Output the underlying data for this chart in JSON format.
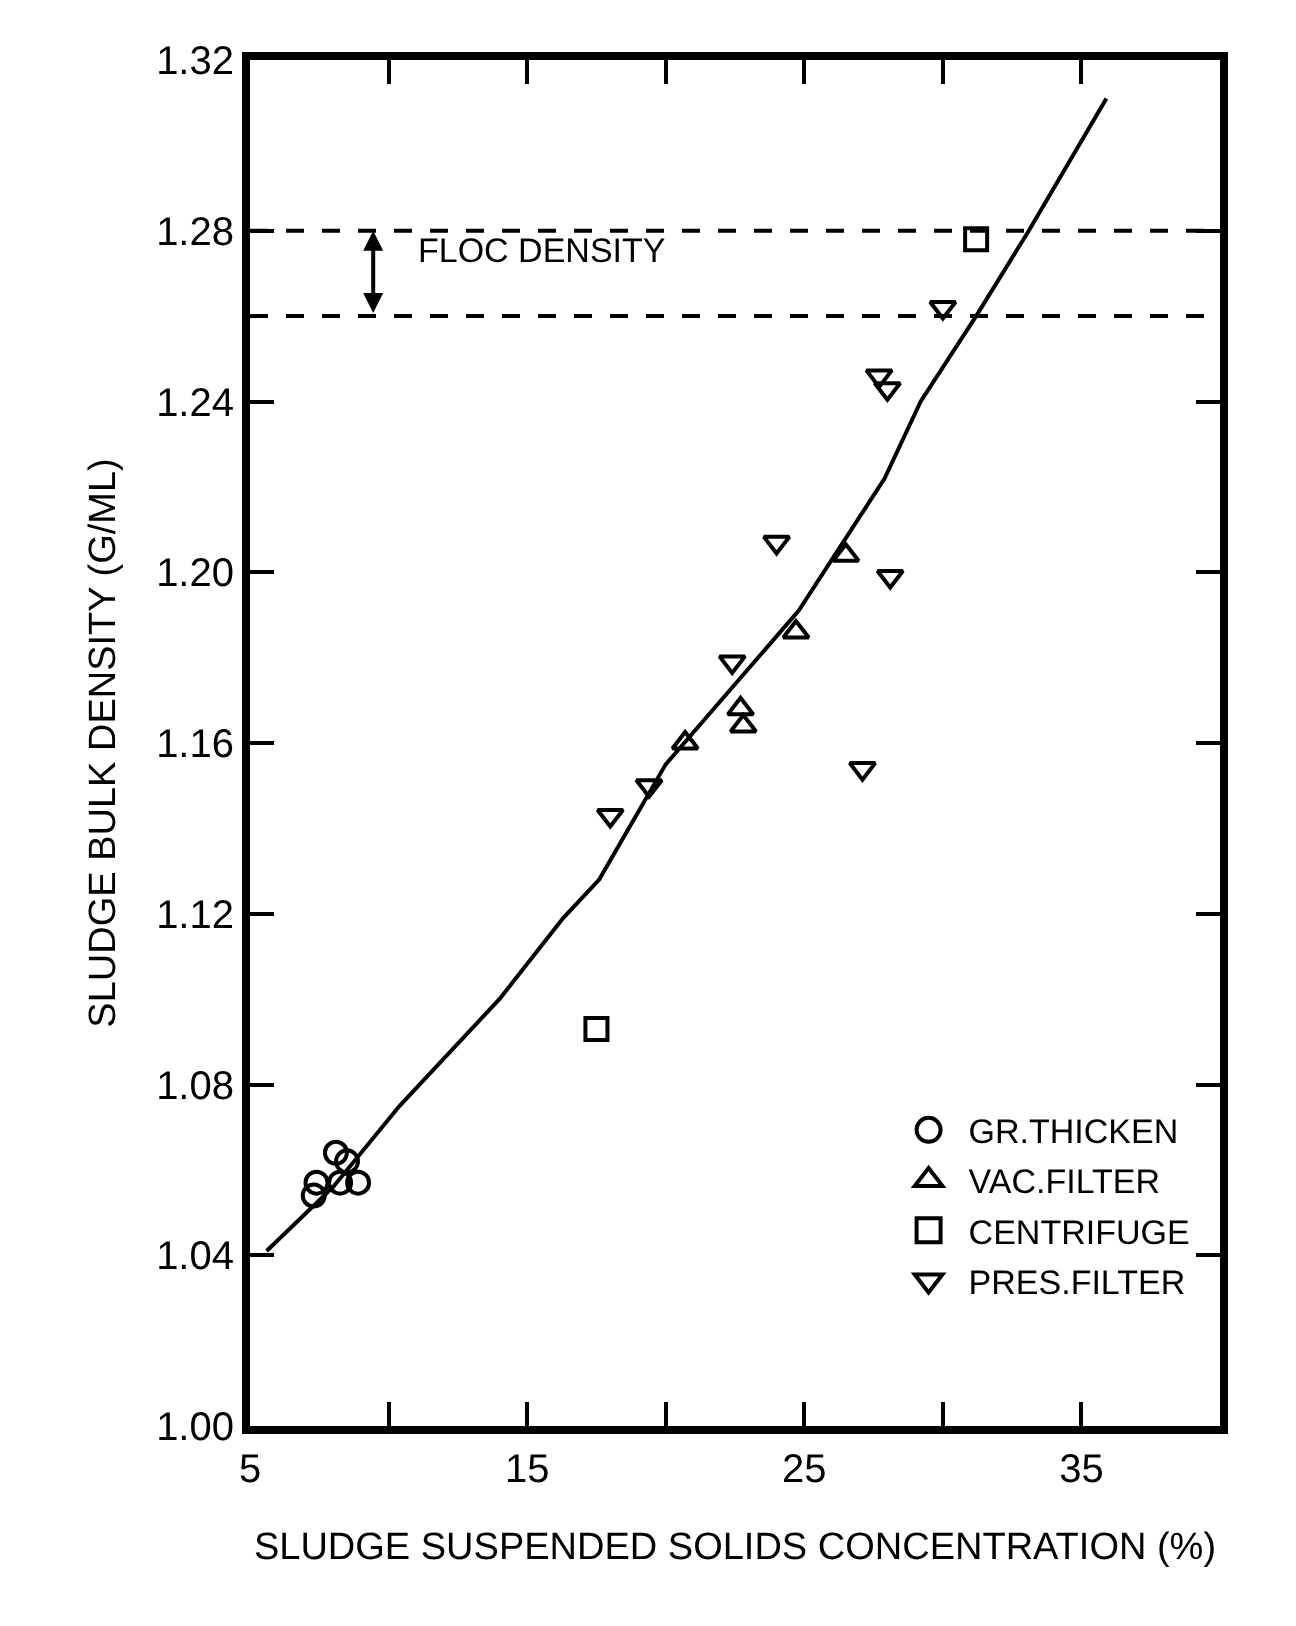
{
  "chart_data": {
    "type": "scatter",
    "xlabel": "SLUDGE SUSPENDED SOLIDS CONCENTRATION (%)",
    "ylabel": "SLUDGE BULK DENSITY (G/ML)",
    "xlim": [
      5,
      40
    ],
    "xticks": [
      5,
      {
        "value": 10,
        "label": null
      },
      15,
      {
        "value": 20,
        "label": null
      },
      25,
      {
        "value": 30,
        "label": null
      },
      35
    ],
    "ylim": [
      1.0,
      1.32
    ],
    "yticks": [
      {
        "value": 1.0,
        "label": "1.00"
      },
      1.04,
      1.08,
      1.12,
      1.16,
      {
        "value": 1.2,
        "label": "1.20"
      },
      1.24,
      1.28,
      1.32
    ],
    "legend": "bottom right",
    "series": [
      {
        "name": "GR.THICKEN",
        "color": "#000000",
        "marker": "circle",
        "x": [
          8.1,
          8.5,
          7.4,
          8.25,
          8.9,
          7.3
        ],
        "values": [
          1.064,
          1.062,
          1.057,
          1.057,
          1.057,
          1.054
        ]
      },
      {
        "name": "VAC.FILTER",
        "color": "#000000",
        "marker": "triangle",
        "x": [
          26.5,
          24.7,
          22.7,
          22.8,
          20.7
        ],
        "values": [
          1.204,
          1.186,
          1.168,
          1.164,
          1.16
        ]
      },
      {
        "name": "CENTRIFUGE",
        "color": "#000000",
        "marker": "square",
        "x": [
          31.2,
          17.5
        ],
        "values": [
          1.278,
          1.093
        ]
      },
      {
        "name": "PRES.FILTER",
        "color": "#000000",
        "marker": "triangle-down",
        "x": [
          30.0,
          27.7,
          28.0,
          24.0,
          28.1,
          22.4,
          19.4,
          18.0,
          27.1
        ],
        "values": [
          1.262,
          1.246,
          1.243,
          1.207,
          1.199,
          1.179,
          1.15,
          1.143,
          1.154
        ]
      },
      {
        "type": "line",
        "color": "#000000",
        "marker": "none",
        "line_style": "solid",
        "x": [
          5.6,
          8,
          10.4,
          14,
          16.3,
          17.6,
          20,
          24.8,
          27.9,
          29.2,
          31.2,
          33.1,
          35.9
        ],
        "values": [
          1.041,
          1.056,
          1.075,
          1.1,
          1.119,
          1.128,
          1.155,
          1.191,
          1.222,
          1.24,
          1.26,
          1.28,
          1.311
        ]
      }
    ],
    "ref_lines": [
      {
        "axis": "y",
        "value": 1.28,
        "label": null,
        "color": "#000000",
        "line_style": "dashed"
      },
      {
        "axis": "y",
        "value": 1.26,
        "label": null,
        "color": "#000000",
        "line_style": "dashed"
      }
    ],
    "annotations": [
      "FLOC DENSITY"
    ]
  }
}
